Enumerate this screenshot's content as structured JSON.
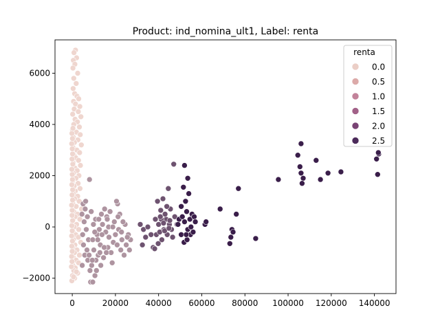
{
  "chart_data": {
    "type": "scatter",
    "title": "Product: ind_nomina_ult1, Label: renta",
    "xlabel": "",
    "ylabel": "",
    "xlim": [
      -8000,
      150000
    ],
    "ylim": [
      -2600,
      7300
    ],
    "xticks": [
      0,
      20000,
      40000,
      60000,
      80000,
      100000,
      120000,
      140000
    ],
    "yticks": [
      -2000,
      0,
      2000,
      4000,
      6000
    ],
    "grid": false,
    "legend": {
      "title": "renta",
      "placement": "top-right",
      "entries": [
        {
          "label": "0.0",
          "color": "#ebcec6"
        },
        {
          "label": "0.5",
          "color": "#dcaaa9"
        },
        {
          "label": "1.0",
          "color": "#c2829a"
        },
        {
          "label": "1.5",
          "color": "#a26188"
        },
        {
          "label": "2.0",
          "color": "#794374"
        },
        {
          "label": "2.5",
          "color": "#4c2a5a"
        }
      ]
    },
    "palette": {
      "low": "#efd6cf",
      "high": "#3a1e4a",
      "hue_range": [
        0,
        2.8
      ]
    },
    "points": [
      [
        1500,
        6900,
        0
      ],
      [
        800,
        6800,
        0
      ],
      [
        2000,
        6600,
        0
      ],
      [
        500,
        6500,
        0
      ],
      [
        1200,
        6350,
        0
      ],
      [
        300,
        6200,
        0
      ],
      [
        2500,
        6000,
        0
      ],
      [
        700,
        5800,
        0
      ],
      [
        1800,
        5600,
        0
      ],
      [
        400,
        5400,
        0
      ],
      [
        1100,
        5200,
        0
      ],
      [
        2200,
        5100,
        0
      ],
      [
        3000,
        5000,
        0
      ],
      [
        600,
        4900,
        0
      ],
      [
        1500,
        4800,
        0
      ],
      [
        3500,
        4700,
        0
      ],
      [
        900,
        4600,
        0
      ],
      [
        2800,
        4500,
        0
      ],
      [
        200,
        4400,
        0
      ],
      [
        4000,
        4300,
        0
      ],
      [
        1300,
        4200,
        0
      ],
      [
        2400,
        4100,
        0
      ],
      [
        700,
        4000,
        0
      ],
      [
        3300,
        3900,
        0
      ],
      [
        100,
        3800,
        0
      ],
      [
        1900,
        3700,
        0
      ],
      [
        3700,
        3600,
        0
      ],
      [
        500,
        3500,
        0
      ],
      [
        2600,
        3400,
        0
      ],
      [
        1000,
        3300,
        0
      ],
      [
        4200,
        3200,
        0
      ],
      [
        300,
        3100,
        0
      ],
      [
        2100,
        3000,
        0
      ],
      [
        3400,
        2900,
        0
      ],
      [
        800,
        2800,
        0
      ],
      [
        1600,
        2700,
        0
      ],
      [
        2900,
        2600,
        0
      ],
      [
        400,
        2500,
        0
      ],
      [
        3800,
        2400,
        0
      ],
      [
        1200,
        2300,
        0
      ],
      [
        2300,
        2200,
        0
      ],
      [
        600,
        2100,
        0
      ],
      [
        3100,
        2000,
        0
      ],
      [
        1700,
        1900,
        0
      ],
      [
        200,
        1800,
        0
      ],
      [
        2700,
        1700,
        0
      ],
      [
        900,
        1600,
        0
      ],
      [
        3600,
        1500,
        0
      ],
      [
        1400,
        1400,
        0
      ],
      [
        500,
        1300,
        0
      ],
      [
        2500,
        1200,
        0
      ],
      [
        1100,
        1100,
        0
      ],
      [
        3200,
        1000,
        0
      ],
      [
        300,
        900,
        0
      ],
      [
        1800,
        800,
        0
      ],
      [
        4300,
        700,
        0
      ],
      [
        700,
        600,
        0
      ],
      [
        2400,
        500,
        0
      ],
      [
        1300,
        400,
        0
      ],
      [
        3500,
        300,
        0
      ],
      [
        100,
        200,
        0
      ],
      [
        2000,
        100,
        0
      ],
      [
        900,
        0,
        0
      ],
      [
        3000,
        -100,
        0
      ],
      [
        400,
        -200,
        0
      ],
      [
        1600,
        -300,
        0
      ],
      [
        2800,
        -400,
        0
      ],
      [
        600,
        -500,
        0
      ],
      [
        3900,
        -600,
        0
      ],
      [
        1200,
        -700,
        0
      ],
      [
        200,
        -800,
        0
      ],
      [
        2200,
        -900,
        0
      ],
      [
        1000,
        -1000,
        0
      ],
      [
        3300,
        -1100,
        0
      ],
      [
        500,
        -1200,
        0
      ],
      [
        1800,
        -1300,
        0
      ],
      [
        2900,
        -1400,
        0
      ],
      [
        300,
        -1500,
        0
      ],
      [
        1400,
        -1600,
        0
      ],
      [
        700,
        -1700,
        0
      ],
      [
        2500,
        -1800,
        0
      ],
      [
        100,
        -1900,
        0
      ],
      [
        1100,
        -2000,
        0
      ],
      [
        -200,
        -2100,
        0
      ],
      [
        600,
        -1950,
        0
      ],
      [
        1900,
        -1750,
        0
      ],
      [
        -400,
        -1550,
        0
      ],
      [
        -100,
        -1350,
        0
      ],
      [
        -300,
        -1150,
        0
      ],
      [
        0,
        -950,
        0
      ],
      [
        -200,
        -750,
        0
      ],
      [
        100,
        -550,
        0
      ],
      [
        -300,
        -350,
        0
      ],
      [
        0,
        -150,
        0
      ],
      [
        -200,
        50,
        0
      ],
      [
        200,
        250,
        0
      ],
      [
        -100,
        450,
        0
      ],
      [
        0,
        650,
        0
      ],
      [
        -300,
        850,
        0
      ],
      [
        150,
        1050,
        0
      ],
      [
        -100,
        1250,
        0
      ],
      [
        200,
        1450,
        0
      ],
      [
        -200,
        1650,
        0
      ],
      [
        100,
        1850,
        0
      ],
      [
        0,
        2050,
        0
      ],
      [
        -200,
        2250,
        0
      ],
      [
        250,
        2450,
        0
      ],
      [
        -100,
        2650,
        0
      ],
      [
        150,
        2850,
        0
      ],
      [
        0,
        3050,
        0
      ],
      [
        -250,
        3250,
        0
      ],
      [
        100,
        3450,
        0
      ],
      [
        -150,
        3650,
        0
      ],
      [
        300,
        3850,
        0
      ],
      [
        8000,
        1850,
        1
      ],
      [
        5000,
        900,
        1
      ],
      [
        6000,
        700,
        1
      ],
      [
        4500,
        500,
        1
      ],
      [
        7000,
        400,
        1
      ],
      [
        5500,
        200,
        1
      ],
      [
        6500,
        -100,
        1
      ],
      [
        4800,
        -300,
        1
      ],
      [
        7500,
        -500,
        1
      ],
      [
        5200,
        -700,
        1
      ],
      [
        6800,
        -900,
        1
      ],
      [
        5800,
        -1100,
        1
      ],
      [
        7200,
        -1300,
        1
      ],
      [
        4600,
        -1500,
        1
      ],
      [
        8200,
        -1700,
        1
      ],
      [
        8500,
        -2150,
        1
      ],
      [
        9500,
        -2150,
        1
      ],
      [
        10500,
        -1900,
        1
      ],
      [
        9000,
        -1500,
        1
      ],
      [
        11000,
        -1300,
        1
      ],
      [
        12000,
        -1100,
        1
      ],
      [
        10000,
        -900,
        1
      ],
      [
        13000,
        -700,
        1
      ],
      [
        9500,
        -500,
        1
      ],
      [
        11500,
        -300,
        1
      ],
      [
        12500,
        -100,
        1
      ],
      [
        14000,
        100,
        1
      ],
      [
        10800,
        300,
        1
      ],
      [
        13500,
        500,
        1
      ],
      [
        15000,
        700,
        1
      ],
      [
        16000,
        400,
        1
      ],
      [
        15500,
        -200,
        1
      ],
      [
        17000,
        -400,
        1
      ],
      [
        16500,
        -800,
        1
      ],
      [
        18000,
        -1000,
        1
      ],
      [
        14500,
        -1200,
        1
      ],
      [
        19000,
        -600,
        1
      ],
      [
        20000,
        -300,
        1
      ],
      [
        21000,
        900,
        1
      ],
      [
        20500,
        1000,
        1
      ],
      [
        22000,
        500,
        1
      ],
      [
        21500,
        -100,
        1
      ],
      [
        23000,
        -500,
        1
      ],
      [
        22500,
        -900,
        1
      ],
      [
        24000,
        -1100,
        1
      ],
      [
        25000,
        -700,
        1
      ],
      [
        26000,
        -300,
        1
      ],
      [
        24500,
        100,
        1
      ],
      [
        27000,
        -500,
        1
      ],
      [
        26500,
        -900,
        1
      ],
      [
        18500,
        -1400,
        1
      ],
      [
        13200,
        -1500,
        1
      ],
      [
        11200,
        -1700,
        1
      ],
      [
        12300,
        300,
        1
      ],
      [
        8800,
        600,
        1
      ],
      [
        9800,
        100,
        1
      ],
      [
        10400,
        -200,
        1
      ],
      [
        14800,
        -800,
        1
      ],
      [
        16800,
        0,
        1
      ],
      [
        19500,
        200,
        1
      ],
      [
        17500,
        600,
        1
      ],
      [
        23500,
        200,
        1
      ],
      [
        25500,
        -400,
        1
      ],
      [
        20800,
        -700,
        1
      ],
      [
        22800,
        -200,
        1
      ],
      [
        12800,
        -1000,
        1
      ],
      [
        15800,
        -1000,
        1
      ],
      [
        7800,
        -1100,
        1
      ],
      [
        9300,
        -1300,
        1
      ],
      [
        11800,
        -500,
        1
      ],
      [
        13800,
        -300,
        1
      ],
      [
        16200,
        300,
        1
      ],
      [
        18800,
        0,
        1
      ],
      [
        21200,
        400,
        1
      ],
      [
        6200,
        1000,
        1
      ],
      [
        47000,
        2450,
        2
      ],
      [
        44500,
        1500,
        2
      ],
      [
        42000,
        1100,
        2
      ],
      [
        41000,
        650,
        2
      ],
      [
        39500,
        1000,
        2
      ],
      [
        38500,
        300,
        2
      ],
      [
        40000,
        100,
        2
      ],
      [
        42500,
        -100,
        2
      ],
      [
        43500,
        300,
        2
      ],
      [
        45000,
        100,
        2
      ],
      [
        46000,
        -100,
        2
      ],
      [
        44000,
        -300,
        2
      ],
      [
        41500,
        -500,
        2
      ],
      [
        39000,
        -300,
        2
      ],
      [
        37500,
        -800,
        2
      ],
      [
        38200,
        -850,
        2
      ],
      [
        40500,
        -200,
        2
      ],
      [
        43000,
        500,
        2
      ],
      [
        45500,
        700,
        2
      ],
      [
        47500,
        400,
        2
      ],
      [
        48500,
        100,
        2
      ],
      [
        46500,
        -400,
        2
      ],
      [
        42800,
        -150,
        2
      ],
      [
        44800,
        -50,
        2
      ],
      [
        41200,
        300,
        2
      ],
      [
        39800,
        -650,
        2
      ],
      [
        43800,
        800,
        2
      ],
      [
        40800,
        400,
        2
      ],
      [
        42300,
        150,
        2
      ],
      [
        45200,
        250,
        2
      ],
      [
        36500,
        -300,
        2
      ],
      [
        33000,
        -100,
        2
      ],
      [
        31500,
        100,
        2
      ],
      [
        34000,
        -400,
        2
      ],
      [
        32500,
        -700,
        2
      ],
      [
        35000,
        0,
        2
      ],
      [
        52000,
        2400,
        3
      ],
      [
        53500,
        1900,
        3
      ],
      [
        51500,
        1550,
        3
      ],
      [
        54000,
        1300,
        3
      ],
      [
        52500,
        1000,
        3
      ],
      [
        50500,
        800,
        3
      ],
      [
        49500,
        300,
        3
      ],
      [
        51000,
        400,
        3
      ],
      [
        53000,
        600,
        3
      ],
      [
        54500,
        300,
        3
      ],
      [
        55500,
        500,
        3
      ],
      [
        56500,
        400,
        3
      ],
      [
        52000,
        200,
        3
      ],
      [
        53500,
        -100,
        3
      ],
      [
        50500,
        -300,
        3
      ],
      [
        51800,
        -600,
        3
      ],
      [
        53200,
        -500,
        3
      ],
      [
        54800,
        -300,
        3
      ],
      [
        56000,
        -200,
        3
      ],
      [
        55000,
        0,
        3
      ],
      [
        57000,
        200,
        3
      ],
      [
        52800,
        -300,
        3
      ],
      [
        49000,
        100,
        3
      ],
      [
        61500,
        100,
        3
      ],
      [
        62000,
        200,
        3
      ],
      [
        68500,
        700,
        3
      ],
      [
        73000,
        -650,
        3
      ],
      [
        73500,
        -400,
        3
      ],
      [
        74000,
        -100,
        3
      ],
      [
        74500,
        -200,
        3
      ],
      [
        76000,
        500,
        3
      ],
      [
        77000,
        1500,
        3
      ],
      [
        85000,
        -450,
        4
      ],
      [
        95500,
        1850,
        4
      ],
      [
        104500,
        2800,
        4
      ],
      [
        105500,
        2350,
        4
      ],
      [
        106000,
        3250,
        4
      ],
      [
        106000,
        2100,
        4
      ],
      [
        107000,
        1900,
        4
      ],
      [
        106500,
        1700,
        4
      ],
      [
        113000,
        2600,
        4
      ],
      [
        115000,
        1850,
        4
      ],
      [
        118500,
        2100,
        4
      ],
      [
        124500,
        2150,
        5
      ],
      [
        141000,
        2650,
        5
      ],
      [
        142000,
        2850,
        5
      ],
      [
        141800,
        2900,
        5
      ],
      [
        141500,
        2050,
        5
      ]
    ]
  }
}
